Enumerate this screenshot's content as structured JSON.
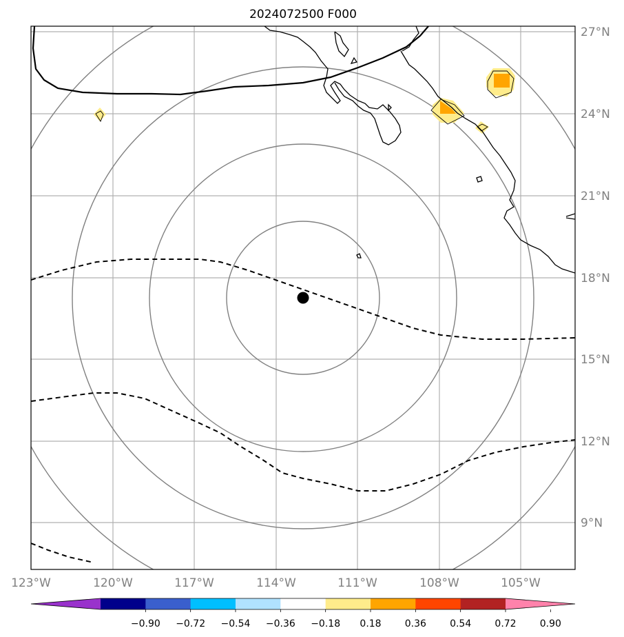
{
  "title": "2024072500 F000",
  "lon_ticks": [
    "123°W",
    "120°W",
    "117°W",
    "114°W",
    "111°W",
    "108°W",
    "105°W"
  ],
  "lat_ticks": [
    "27°N",
    "24°N",
    "21°N",
    "18°N",
    "15°N",
    "12°N",
    "9°N"
  ],
  "colorbar": {
    "labels": [
      "−0.90",
      "−0.72",
      "−0.54",
      "−0.36",
      "−0.18",
      "0.18",
      "0.36",
      "0.54",
      "0.72",
      "0.90"
    ],
    "colors": [
      "#9932cc",
      "#00008b",
      "#3a5fcd",
      "#00bfff",
      "#b0e2ff",
      "#ffffff",
      "#ffec8b",
      "#ffa500",
      "#ff4500",
      "#b22222",
      "#ff82ab"
    ]
  },
  "storm_center": {
    "lat": 17.2,
    "lon": -113.1
  },
  "range_rings": {
    "count": 4,
    "color": "#808080"
  },
  "colors": {
    "coast": "#000000",
    "grid": "#b0b0b0",
    "ring": "#808080"
  }
}
